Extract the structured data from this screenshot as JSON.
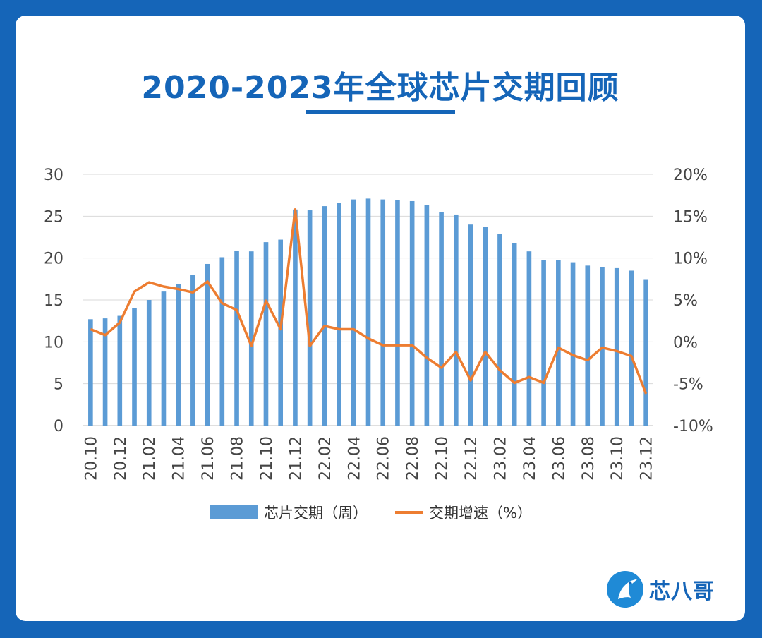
{
  "title": "2020-2023年全球芯片交期回顾",
  "brand": {
    "name": "芯八哥"
  },
  "colors": {
    "background": "#1565b8",
    "bar": "#5b9bd5",
    "line": "#ed7d31",
    "title": "#1565b8"
  },
  "chart_data": {
    "type": "bar",
    "categories": [
      "20.10",
      "20.11",
      "20.12",
      "21.01",
      "21.02",
      "21.03",
      "21.04",
      "21.05",
      "21.06",
      "21.07",
      "21.08",
      "21.09",
      "21.10",
      "21.11",
      "21.12",
      "22.01",
      "22.02",
      "22.03",
      "22.04",
      "22.05",
      "22.06",
      "22.07",
      "22.08",
      "22.09",
      "22.10",
      "22.11",
      "22.12",
      "23.01",
      "23.02",
      "23.03",
      "23.04",
      "23.05",
      "23.06",
      "23.07",
      "23.08",
      "23.09",
      "23.10",
      "23.11",
      "23.12"
    ],
    "x_tick_labels": [
      "20.10",
      "20.12",
      "21.02",
      "21.04",
      "21.06",
      "21.08",
      "21.10",
      "21.12",
      "22.02",
      "22.04",
      "22.06",
      "22.08",
      "22.10",
      "22.12",
      "23.02",
      "23.04",
      "23.06",
      "23.08",
      "23.10",
      "23.12"
    ],
    "series": [
      {
        "name": "芯片交期（周）",
        "type": "bar",
        "axis": "left",
        "values": [
          12.7,
          12.8,
          13.1,
          14.0,
          15.0,
          16.0,
          16.9,
          18.0,
          19.3,
          20.1,
          20.9,
          20.8,
          21.9,
          22.2,
          25.8,
          25.7,
          26.2,
          26.6,
          27.0,
          27.1,
          27.0,
          26.9,
          26.8,
          26.3,
          25.5,
          25.2,
          24.0,
          23.7,
          22.9,
          21.8,
          20.8,
          19.8,
          19.8,
          19.5,
          19.1,
          18.9,
          18.8,
          18.5,
          17.4
        ]
      },
      {
        "name": "交期增速（%）",
        "type": "line",
        "axis": "right",
        "values": [
          1.5,
          0.8,
          2.3,
          6.0,
          7.1,
          6.6,
          6.3,
          5.9,
          7.2,
          4.6,
          3.8,
          -0.5,
          4.9,
          1.5,
          15.8,
          -0.5,
          1.9,
          1.5,
          1.5,
          0.4,
          -0.4,
          -0.4,
          -0.4,
          -1.9,
          -3.1,
          -1.2,
          -4.6,
          -1.2,
          -3.4,
          -4.9,
          -4.2,
          -4.9,
          -0.7,
          -1.6,
          -2.2,
          -0.7,
          -1.1,
          -1.7,
          -6.2
        ]
      }
    ],
    "y_left": {
      "ticks": [
        "0",
        "5",
        "10",
        "15",
        "20",
        "25",
        "30"
      ],
      "range": [
        0,
        30
      ]
    },
    "y_right": {
      "ticks": [
        "-10%",
        "-5%",
        "0%",
        "5%",
        "10%",
        "15%",
        "20%"
      ],
      "range": [
        -10,
        20
      ]
    },
    "grid": true,
    "legend_position": "bottom"
  }
}
